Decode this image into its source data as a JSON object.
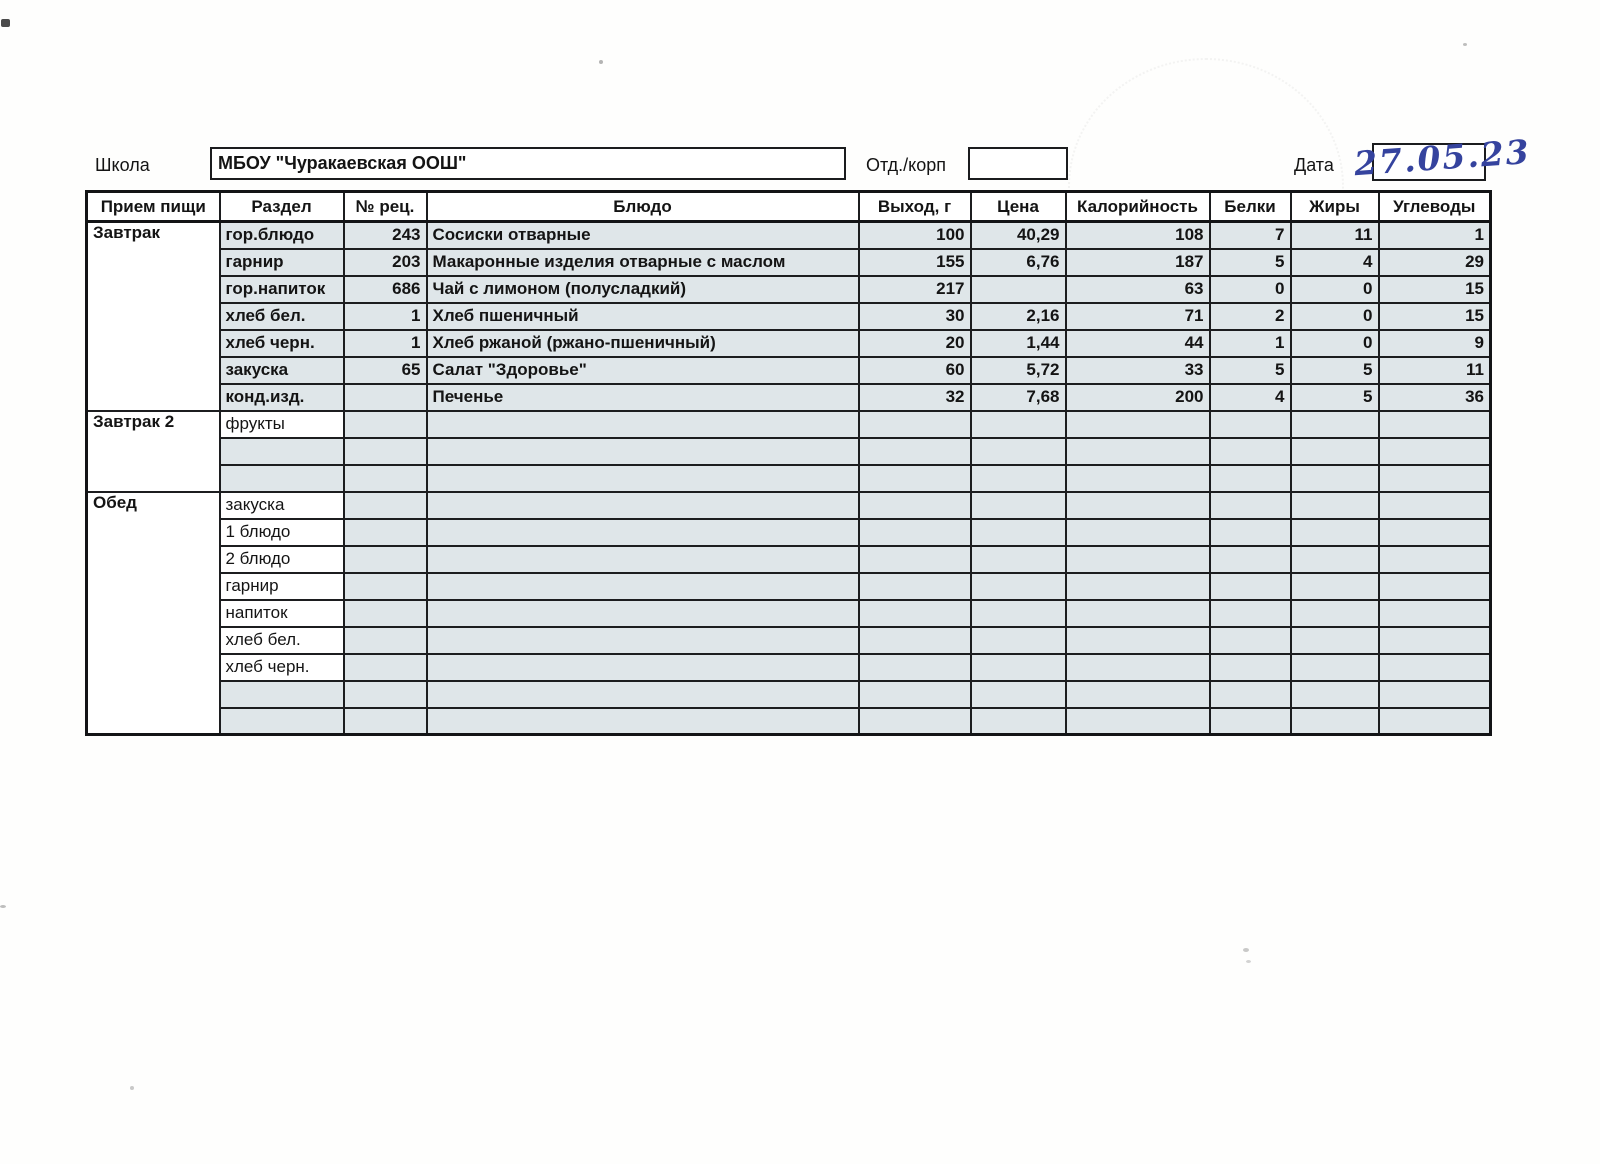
{
  "form": {
    "school_label": "Школа",
    "school_value": "МБОУ \"Чуракаевская ООШ\"",
    "dept_label": "Отд./корп",
    "dept_value": "",
    "date_label": "Дата",
    "date_value_handwritten": "27.05.23",
    "ink_color": "#35439e"
  },
  "table": {
    "headers": [
      "Прием пищи",
      "Раздел",
      "№ рец.",
      "Блюдо",
      "Выход, г",
      "Цена",
      "Калорийность",
      "Белки",
      "Жиры",
      "Углеводы"
    ],
    "tint_color": "#dfe6e9",
    "sections": [
      {
        "meal": "Завтрак",
        "bold": true,
        "rows": [
          {
            "razdel": "гор.блюдо",
            "rec": "243",
            "dish": "Сосиски отварные",
            "out": "100",
            "price": "40,29",
            "kcal": "108",
            "protein": "7",
            "fat": "11",
            "carbs": "1"
          },
          {
            "razdel": "гарнир",
            "rec": "203",
            "dish": "Макаронные изделия отварные с маслом",
            "out": "155",
            "price": "6,76",
            "kcal": "187",
            "protein": "5",
            "fat": "4",
            "carbs": "29"
          },
          {
            "razdel": "гор.напиток",
            "rec": "686",
            "dish": "Чай с лимоном (полусладкий)",
            "out": "217",
            "price": "",
            "kcal": "63",
            "protein": "0",
            "fat": "0",
            "carbs": "15"
          },
          {
            "razdel": "хлеб бел.",
            "rec": "1",
            "dish": "Хлеб пшеничный",
            "out": "30",
            "price": "2,16",
            "kcal": "71",
            "protein": "2",
            "fat": "0",
            "carbs": "15"
          },
          {
            "razdel": "хлеб черн.",
            "rec": "1",
            "dish": "Хлеб ржаной (ржано-пшеничный)",
            "out": "20",
            "price": "1,44",
            "kcal": "44",
            "protein": "1",
            "fat": "0",
            "carbs": "9"
          },
          {
            "razdel": "закуска",
            "rec": "65",
            "dish": "Салат \"Здоровье\"",
            "out": "60",
            "price": "5,72",
            "kcal": "33",
            "protein": "5",
            "fat": "5",
            "carbs": "11"
          },
          {
            "razdel": "конд.изд.",
            "rec": "",
            "dish": "Печенье",
            "out": "32",
            "price": "7,68",
            "kcal": "200",
            "protein": "4",
            "fat": "5",
            "carbs": "36"
          }
        ]
      },
      {
        "meal": "Завтрак 2",
        "bold": false,
        "rows": [
          {
            "razdel": "фрукты",
            "rec": "",
            "dish": "",
            "out": "",
            "price": "",
            "kcal": "",
            "protein": "",
            "fat": "",
            "carbs": ""
          },
          {
            "razdel": "",
            "rec": "",
            "dish": "",
            "out": "",
            "price": "",
            "kcal": "",
            "protein": "",
            "fat": "",
            "carbs": ""
          },
          {
            "razdel": "",
            "rec": "",
            "dish": "",
            "out": "",
            "price": "",
            "kcal": "",
            "protein": "",
            "fat": "",
            "carbs": ""
          }
        ]
      },
      {
        "meal": "Обед",
        "bold": false,
        "rows": [
          {
            "razdel": "закуска",
            "rec": "",
            "dish": "",
            "out": "",
            "price": "",
            "kcal": "",
            "protein": "",
            "fat": "",
            "carbs": ""
          },
          {
            "razdel": "1 блюдо",
            "rec": "",
            "dish": "",
            "out": "",
            "price": "",
            "kcal": "",
            "protein": "",
            "fat": "",
            "carbs": ""
          },
          {
            "razdel": "2 блюдо",
            "rec": "",
            "dish": "",
            "out": "",
            "price": "",
            "kcal": "",
            "protein": "",
            "fat": "",
            "carbs": ""
          },
          {
            "razdel": "гарнир",
            "rec": "",
            "dish": "",
            "out": "",
            "price": "",
            "kcal": "",
            "protein": "",
            "fat": "",
            "carbs": ""
          },
          {
            "razdel": "напиток",
            "rec": "",
            "dish": "",
            "out": "",
            "price": "",
            "kcal": "",
            "protein": "",
            "fat": "",
            "carbs": ""
          },
          {
            "razdel": "хлеб бел.",
            "rec": "",
            "dish": "",
            "out": "",
            "price": "",
            "kcal": "",
            "protein": "",
            "fat": "",
            "carbs": ""
          },
          {
            "razdel": "хлеб черн.",
            "rec": "",
            "dish": "",
            "out": "",
            "price": "",
            "kcal": "",
            "protein": "",
            "fat": "",
            "carbs": ""
          },
          {
            "razdel": "",
            "rec": "",
            "dish": "",
            "out": "",
            "price": "",
            "kcal": "",
            "protein": "",
            "fat": "",
            "carbs": ""
          },
          {
            "razdel": "",
            "rec": "",
            "dish": "",
            "out": "",
            "price": "",
            "kcal": "",
            "protein": "",
            "fat": "",
            "carbs": ""
          }
        ]
      }
    ]
  }
}
